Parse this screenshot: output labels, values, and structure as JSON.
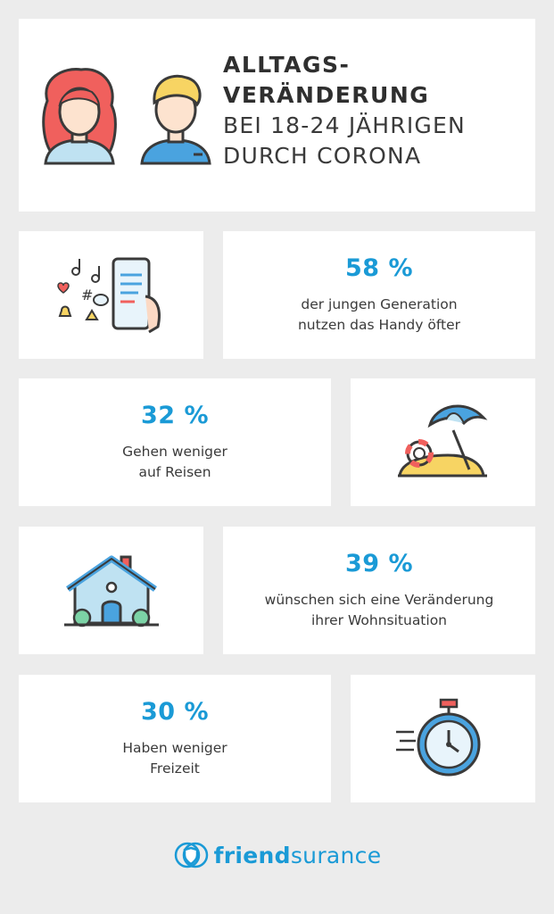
{
  "header": {
    "title_bold_1": "ALLTAGS-",
    "title_bold_2": "VERÄNDERUNG",
    "title_light_1": "BEI 18-24 JÄHRIGEN",
    "title_light_2": "DURCH CORONA"
  },
  "stats": [
    {
      "percent": "58 %",
      "line1": "der jungen Generation",
      "line2": "nutzen das Handy öfter",
      "icon": "smartphone-icon"
    },
    {
      "percent": "32 %",
      "line1": "Gehen weniger",
      "line2": "auf Reisen",
      "icon": "beach-umbrella-icon"
    },
    {
      "percent": "39 %",
      "line1": "wünschen sich eine Veränderung",
      "line2": "ihrer Wohnsituation",
      "icon": "house-icon"
    },
    {
      "percent": "30 %",
      "line1": "Haben weniger",
      "line2": "Freizeit",
      "icon": "stopwatch-icon"
    }
  ],
  "brand": {
    "name_strong": "friend",
    "name_light": "surance",
    "color": "#1a9ad6"
  }
}
